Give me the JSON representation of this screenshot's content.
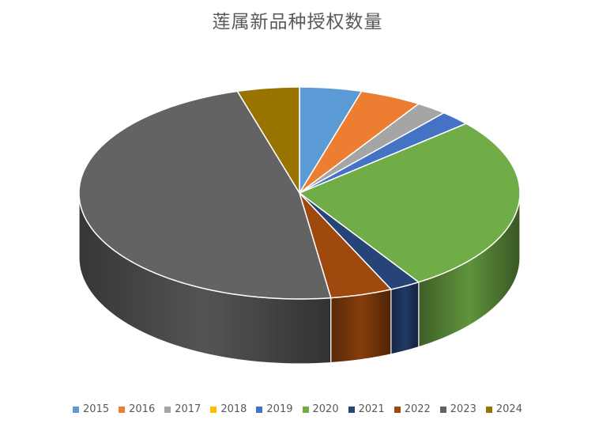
{
  "chart_data": {
    "type": "pie",
    "style": "3d",
    "title": "莲属新品种授权数量",
    "categories": [
      "2015",
      "2016",
      "2017",
      "2018",
      "2019",
      "2020",
      "2021",
      "2022",
      "2023",
      "2024"
    ],
    "values": [
      2,
      2,
      1,
      0,
      1,
      12,
      1,
      2,
      21,
      2
    ],
    "colors": [
      "#5B9BD5",
      "#ED7D31",
      "#A5A5A5",
      "#FFC000",
      "#4472C4",
      "#70AD47",
      "#264478",
      "#9E480E",
      "#636363",
      "#997300"
    ],
    "legend": "bottom"
  }
}
